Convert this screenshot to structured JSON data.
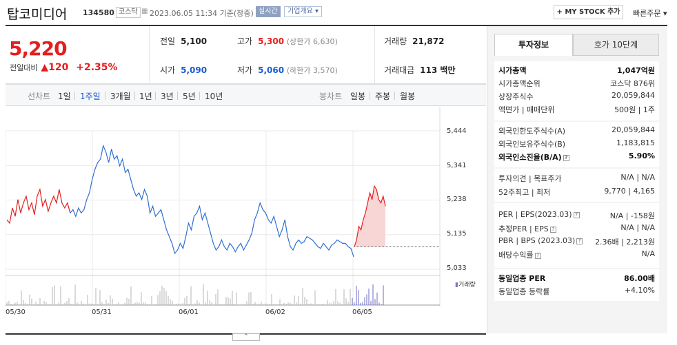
{
  "header": {
    "stock_name": "탑코미디어",
    "stock_code": "134580",
    "market_badge": "코스닥",
    "date_text": "2023.06.05 11:34 기준(장중)",
    "realtime_label": "실시간",
    "company_btn": "기업개요 ▾",
    "mystock_btn": "+ MY STOCK 추가",
    "quick_order": "빠른주문 ▾"
  },
  "price": {
    "current": "5,220",
    "change_label": "전일대비",
    "change_value": "▲120",
    "change_pct": "+2.35%"
  },
  "quote": {
    "prev_label": "전일",
    "prev": "5,100",
    "high_label": "고가",
    "high": "5,300",
    "upper_limit": "(상한가 6,630)",
    "volume_label": "거래량",
    "volume": "21,872",
    "open_label": "시가",
    "open": "5,090",
    "low_label": "저가",
    "low": "5,060",
    "lower_limit": "(하한가 3,570)",
    "amount_label": "거래대금",
    "amount": "113 백만"
  },
  "chart_tabs": {
    "line_label": "선차트",
    "line_tabs": [
      "1일",
      "1주일",
      "3개월",
      "1년",
      "3년",
      "5년",
      "10년"
    ],
    "active_line": "1주일",
    "candle_label": "봉차트",
    "candle_tabs": [
      "일봉",
      "주봉",
      "월봉"
    ]
  },
  "chart_data": {
    "type": "line",
    "ylim": [
      5033,
      5444
    ],
    "y_ticks": [
      "5,444",
      "5,341",
      "5,238",
      "5,135",
      "5,033"
    ],
    "x_ticks": [
      "05/30",
      "05/31",
      "06/01",
      "06/02",
      "06/05"
    ],
    "prev_close": 5100,
    "volume_legend": "거래량",
    "colors": {
      "up": "#e41e1e",
      "down": "#2f6fd1",
      "fill": "#f9d6d6"
    },
    "series": [
      {
        "values": [
          5180,
          5170,
          5215,
          5190,
          5240,
          5200,
          5230,
          5250,
          5210,
          5230,
          5195,
          5250,
          5270,
          5220,
          5240,
          5205,
          5230,
          5250,
          5230,
          5270,
          5230,
          5215,
          5230,
          5200,
          5210,
          5190,
          5215,
          5200,
          5210,
          5240,
          5260,
          5300,
          5330,
          5350,
          5360,
          5400,
          5380,
          5350,
          5390,
          5360,
          5370,
          5340,
          5360,
          5320,
          5330,
          5300,
          5270,
          5250,
          5260,
          5240,
          5270,
          5250,
          5200,
          5220,
          5190,
          5200,
          5210,
          5180,
          5150,
          5130,
          5110,
          5080,
          5090,
          5110,
          5095,
          5130,
          5170,
          5150,
          5190,
          5200,
          5220,
          5180,
          5200,
          5170,
          5140,
          5110,
          5090,
          5100,
          5120,
          5100,
          5090,
          5110,
          5100,
          5085,
          5100,
          5110,
          5090,
          5105,
          5120,
          5140,
          5180,
          5200,
          5230,
          5210,
          5200,
          5180,
          5170,
          5190,
          5160,
          5130,
          5150,
          5180,
          5130,
          5100,
          5090,
          5110,
          5120,
          5110,
          5115,
          5130,
          5125,
          5120,
          5110,
          5100,
          5095,
          5110,
          5100,
          5090,
          5105,
          5110,
          5120,
          5115,
          5110,
          5110,
          5100,
          5095,
          5070
        ]
      },
      {
        "values": [
          5100,
          5120,
          5160,
          5150,
          5180,
          5200,
          5230,
          5260,
          5240,
          5280,
          5270,
          5240,
          5230,
          5250,
          5220
        ]
      }
    ]
  },
  "sidebar": {
    "tab_active": "투자정보",
    "tab_other": "호가 10단계",
    "rows1": [
      {
        "k": "시가총액",
        "v": "1,047억원",
        "bold": true
      },
      {
        "k": "시가총액순위",
        "v": "코스닥 876위"
      },
      {
        "k": "상장주식수",
        "v": "20,059,844"
      },
      {
        "k": "액면가 | 매매단위",
        "v": "500원 | 1주"
      }
    ],
    "rows2": [
      {
        "k": "외국인한도주식수(A)",
        "v": "20,059,844"
      },
      {
        "k": "외국인보유주식수(B)",
        "v": "1,183,815"
      },
      {
        "k": "외국인소진율(B/A)",
        "v": "5.90%",
        "bold": true
      }
    ],
    "rows3": [
      {
        "k": "투자의견 | 목표주가",
        "v": "N/A | N/A"
      },
      {
        "k": "52주최고 | 최저",
        "v": "9,770 | 4,165"
      }
    ],
    "rows4": [
      {
        "k": "PER | EPS(2023.03)",
        "v": "N/A | -158원"
      },
      {
        "k": "추정PER | EPS",
        "v": "N/A | N/A"
      },
      {
        "k": "PBR | BPS (2023.03)",
        "v": "2.36배 | 2,213원"
      },
      {
        "k": "배당수익률",
        "v": "N/A"
      }
    ],
    "rows5": [
      {
        "k": "동일업종 PER",
        "v": "86.00배",
        "bold": true
      },
      {
        "k": "동일업종 등락률",
        "v": "+4.10%",
        "red": true
      }
    ]
  }
}
